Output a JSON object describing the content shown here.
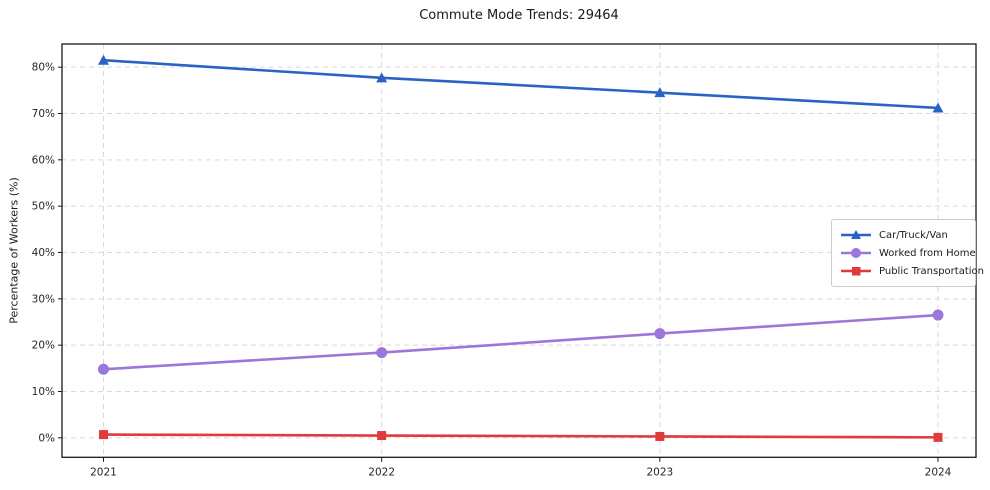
{
  "chart_data": {
    "type": "line",
    "title": "Commute Mode Trends: 29464",
    "xlabel": "",
    "ylabel": "Percentage of Workers (%)",
    "categories": [
      "2021",
      "2022",
      "2023",
      "2024"
    ],
    "series": [
      {
        "name": "Car/Truck/Van",
        "color": "#2b63c4",
        "marker": "triangle",
        "values": [
          81.5,
          77.7,
          74.5,
          71.2
        ]
      },
      {
        "name": "Worked from Home",
        "color": "#9a77d8",
        "marker": "circle",
        "values": [
          14.8,
          18.4,
          22.5,
          26.5
        ]
      },
      {
        "name": "Public Transportation",
        "color": "#e03a3a",
        "marker": "square",
        "values": [
          0.7,
          0.5,
          0.3,
          0.1
        ]
      }
    ],
    "yticks": [
      0,
      10,
      20,
      30,
      40,
      50,
      60,
      70,
      80
    ],
    "ytick_suffix": "%",
    "ylim": [
      -4.2,
      85.0
    ],
    "grid": true,
    "legend_position": "center right"
  },
  "style": {
    "grid_color": "#d9d9d9",
    "frame_color": "#1a1a1a",
    "tick_text_color": "#262626",
    "background": "#ffffff"
  }
}
